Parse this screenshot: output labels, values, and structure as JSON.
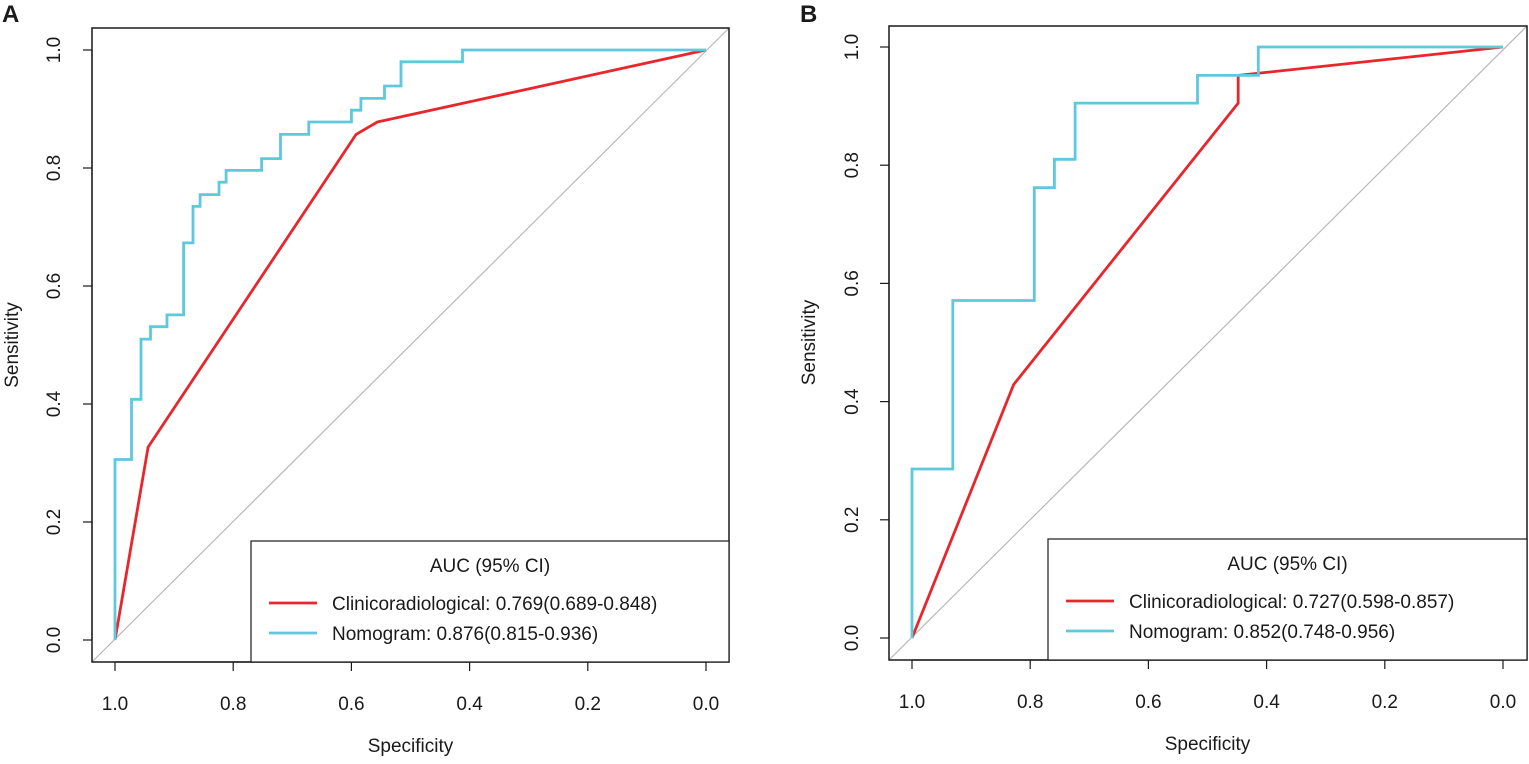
{
  "colors": {
    "clinicoradiological": "#e8262b",
    "nomogram": "#5ec8dc",
    "diagonal": "#b8b8b8",
    "axis": "#1a1a1a"
  },
  "chart_data": [
    {
      "panel_label": "A",
      "type": "line",
      "xlabel": "Specificity",
      "ylabel": "Sensitivity",
      "xlim": [
        1.0,
        0.0
      ],
      "ylim": [
        0.0,
        1.0
      ],
      "x_ticks": [
        "1.0",
        "0.8",
        "0.6",
        "0.4",
        "0.2",
        "0.0"
      ],
      "y_ticks": [
        "0.0",
        "0.2",
        "0.4",
        "0.6",
        "0.8",
        "1.0"
      ],
      "reference_line": [
        [
          1.0,
          0.0
        ],
        [
          0.0,
          1.0
        ]
      ],
      "legend": {
        "title": "AUC (95% CI)",
        "placement": "bottom-right",
        "entries": [
          "Clinicoradiological: 0.769(0.689-0.848)",
          "Nomogram: 0.876(0.815-0.936)"
        ]
      },
      "series": [
        {
          "name": "Clinicoradiological",
          "color_key": "clinicoradiological",
          "points": [
            [
              1.0,
              0.0
            ],
            [
              0.944,
              0.327
            ],
            [
              0.592,
              0.857
            ],
            [
              0.556,
              0.878
            ],
            [
              0.0,
              1.0
            ]
          ]
        },
        {
          "name": "Nomogram",
          "color_key": "nomogram",
          "points": [
            [
              1.0,
              0.0
            ],
            [
              1.0,
              0.306
            ],
            [
              0.972,
              0.306
            ],
            [
              0.972,
              0.408
            ],
            [
              0.956,
              0.408
            ],
            [
              0.956,
              0.51
            ],
            [
              0.94,
              0.51
            ],
            [
              0.94,
              0.531
            ],
            [
              0.912,
              0.531
            ],
            [
              0.912,
              0.551
            ],
            [
              0.884,
              0.551
            ],
            [
              0.884,
              0.673
            ],
            [
              0.868,
              0.673
            ],
            [
              0.868,
              0.735
            ],
            [
              0.856,
              0.735
            ],
            [
              0.856,
              0.755
            ],
            [
              0.824,
              0.755
            ],
            [
              0.824,
              0.776
            ],
            [
              0.812,
              0.776
            ],
            [
              0.812,
              0.796
            ],
            [
              0.752,
              0.796
            ],
            [
              0.752,
              0.816
            ],
            [
              0.72,
              0.816
            ],
            [
              0.72,
              0.857
            ],
            [
              0.672,
              0.857
            ],
            [
              0.672,
              0.878
            ],
            [
              0.6,
              0.878
            ],
            [
              0.6,
              0.898
            ],
            [
              0.584,
              0.898
            ],
            [
              0.584,
              0.918
            ],
            [
              0.544,
              0.918
            ],
            [
              0.544,
              0.939
            ],
            [
              0.516,
              0.939
            ],
            [
              0.516,
              0.98
            ],
            [
              0.412,
              0.98
            ],
            [
              0.412,
              1.0
            ],
            [
              0.0,
              1.0
            ]
          ]
        }
      ]
    },
    {
      "panel_label": "B",
      "type": "line",
      "xlabel": "Specificity",
      "ylabel": "Sensitivity",
      "xlim": [
        1.0,
        0.0
      ],
      "ylim": [
        0.0,
        1.0
      ],
      "x_ticks": [
        "1.0",
        "0.8",
        "0.6",
        "0.4",
        "0.2",
        "0.0"
      ],
      "y_ticks": [
        "0.0",
        "0.2",
        "0.4",
        "0.6",
        "0.8",
        "1.0"
      ],
      "reference_line": [
        [
          1.0,
          0.0
        ],
        [
          0.0,
          1.0
        ]
      ],
      "legend": {
        "title": "AUC (95% CI)",
        "placement": "bottom-right",
        "entries": [
          "Clinicoradiological: 0.727(0.598-0.857)",
          "Nomogram: 0.852(0.748-0.956)"
        ]
      },
      "series": [
        {
          "name": "Clinicoradiological",
          "color_key": "clinicoradiological",
          "points": [
            [
              1.0,
              0.0
            ],
            [
              0.828,
              0.429
            ],
            [
              0.448,
              0.905
            ],
            [
              0.448,
              0.952
            ],
            [
              0.0,
              1.0
            ]
          ]
        },
        {
          "name": "Nomogram",
          "color_key": "nomogram",
          "points": [
            [
              1.0,
              0.0
            ],
            [
              1.0,
              0.286
            ],
            [
              0.931,
              0.286
            ],
            [
              0.931,
              0.571
            ],
            [
              0.793,
              0.571
            ],
            [
              0.793,
              0.762
            ],
            [
              0.759,
              0.762
            ],
            [
              0.759,
              0.81
            ],
            [
              0.724,
              0.81
            ],
            [
              0.724,
              0.905
            ],
            [
              0.517,
              0.905
            ],
            [
              0.517,
              0.952
            ],
            [
              0.414,
              0.952
            ],
            [
              0.414,
              1.0
            ],
            [
              0.0,
              1.0
            ]
          ]
        }
      ]
    }
  ]
}
